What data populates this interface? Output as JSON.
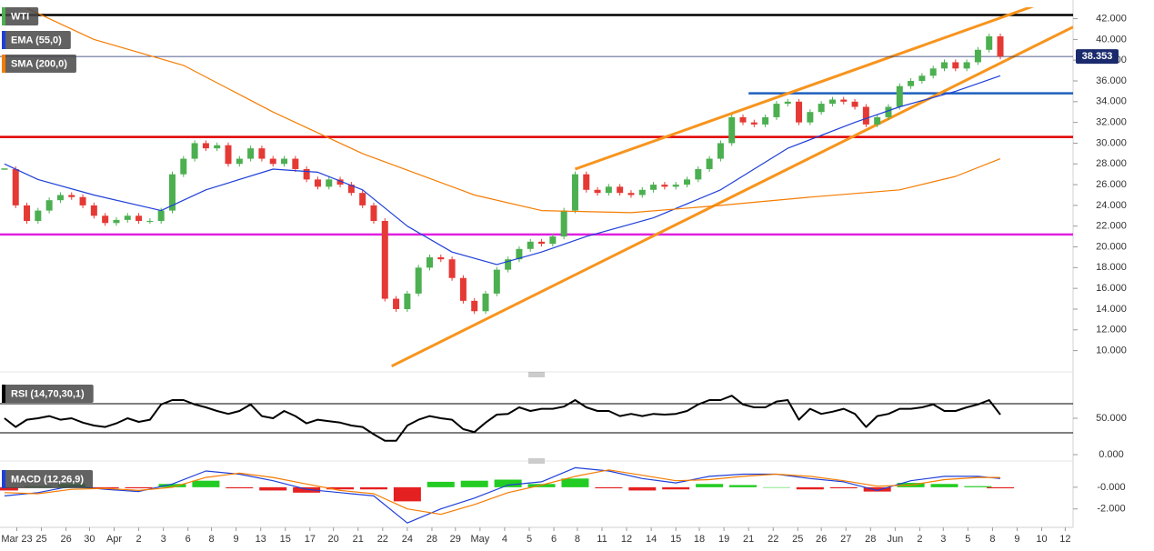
{
  "chart_data": [
    {
      "type": "candlestick",
      "xlim": [
        -0.4,
        95.5
      ],
      "ylim": [
        8.3,
        43.1
      ],
      "yticks": [
        {
          "value": 10,
          "label": "10.000"
        },
        {
          "value": 12,
          "label": "12.000"
        },
        {
          "value": 14,
          "label": "14.000"
        },
        {
          "value": 16,
          "label": "16.000"
        },
        {
          "value": 18,
          "label": "18.000"
        },
        {
          "value": 20,
          "label": "20.000"
        },
        {
          "value": 22,
          "label": "22.000"
        },
        {
          "value": 24,
          "label": "24.000"
        },
        {
          "value": 26,
          "label": "26.000"
        },
        {
          "value": 28,
          "label": "28.000"
        },
        {
          "value": 30,
          "label": "30.000"
        },
        {
          "value": 32,
          "label": "32.000"
        },
        {
          "value": 34,
          "label": "34.000"
        },
        {
          "value": 36,
          "label": "36.000"
        },
        {
          "value": 38,
          "label": "38.000"
        },
        {
          "value": 40,
          "label": "40.000"
        },
        {
          "value": 42,
          "label": "42.000"
        }
      ],
      "series": [
        {
          "name": "WTI",
          "color": "#4caf50",
          "down_color": "#e53935",
          "values": [
            27.5,
            24,
            22.5,
            23.5,
            24.5,
            25,
            24.8,
            24,
            23,
            22.3,
            22.6,
            23,
            22.5,
            22.5,
            23.5,
            27,
            28.5,
            30,
            29.5,
            29.8,
            28,
            28.5,
            29.5,
            28.5,
            28,
            28.5,
            27.5,
            26.5,
            25.8,
            26.5,
            26,
            25.2,
            24,
            22.5,
            15,
            14,
            15.5,
            18,
            19,
            18.8,
            17,
            14.8,
            13.8,
            15.5,
            17.8,
            18.8,
            19.8,
            20.5,
            20.3,
            21,
            23.5,
            27,
            25.5,
            25.2,
            25.8,
            25.2,
            25,
            25.5,
            26,
            25.8,
            26,
            26.5,
            27.5,
            28.5,
            30,
            32.5,
            32,
            31.8,
            32.5,
            33.8,
            34,
            32,
            33,
            33.8,
            34.2,
            34,
            33.5,
            31.8,
            32.5,
            33.5,
            35.5,
            36,
            36.5,
            37.2,
            37.8,
            37.2,
            37.8,
            39,
            40.3,
            38.353
          ]
        },
        {
          "name": "EMA (55,0)",
          "color": "#1f3fd8",
          "x": [
            0,
            3,
            8,
            14,
            18,
            24,
            28,
            32,
            36,
            40,
            44,
            48,
            52,
            58,
            64,
            70,
            76,
            80,
            85,
            89
          ],
          "values": [
            28,
            26.5,
            25,
            23.5,
            25.5,
            27.5,
            27.2,
            25.5,
            22,
            19.5,
            18.3,
            19.5,
            21,
            22.8,
            25.5,
            29.5,
            32,
            33.5,
            35,
            36.5
          ]
        },
        {
          "name": "SMA (200,0)",
          "color": "#f57c00",
          "x": [
            2,
            8,
            16,
            24,
            32,
            37,
            42,
            48,
            56,
            64,
            72,
            80,
            85,
            89
          ],
          "values": [
            43,
            40,
            37.5,
            33,
            29,
            27,
            25,
            23.5,
            23.3,
            24,
            24.8,
            25.5,
            26.8,
            28.5
          ]
        }
      ],
      "last_price": 38.353,
      "hlines": [
        {
          "value": 42.35,
          "color": "#000000"
        },
        {
          "value": 34.8,
          "color": "#1f5fbf",
          "from": 66.5
        },
        {
          "value": 30.6,
          "color": "#e00000"
        },
        {
          "value": 21.2,
          "color": "#e020e0"
        }
      ],
      "trendlines": [
        {
          "x": [
            51,
            93.5
          ],
          "values": [
            27.5,
            43.8
          ],
          "color": "#f7941d"
        },
        {
          "x": [
            34.6,
            95.5
          ],
          "values": [
            8.5,
            41.2
          ],
          "color": "#f7941d"
        }
      ]
    },
    {
      "type": "line",
      "title": "RSI (14,70,30,1)",
      "color": "#000000",
      "xlim": [
        -0.4,
        95.5
      ],
      "ylim": [
        -7.5,
        102.5
      ],
      "yticks": [
        {
          "value": 50,
          "label": "50.000"
        },
        {
          "value": 0,
          "label": "0.000"
        }
      ],
      "hlines": [
        {
          "value": 70,
          "color": "#000000"
        },
        {
          "value": 30,
          "color": "#000000"
        }
      ],
      "values": [
        50,
        38,
        48,
        50,
        53,
        48,
        50,
        44,
        40,
        38,
        43,
        50,
        45,
        48,
        69,
        75,
        75,
        69,
        65,
        60,
        56,
        60,
        69,
        53,
        50,
        60,
        53,
        43,
        48,
        46,
        44,
        40,
        38,
        28,
        19,
        19,
        40,
        48,
        53,
        50,
        48,
        35,
        31,
        44,
        55,
        56,
        65,
        60,
        63,
        63,
        66,
        75,
        65,
        60,
        60,
        53,
        56,
        53,
        56,
        55,
        56,
        60,
        69,
        75,
        75,
        81,
        69,
        65,
        65,
        73,
        75,
        48,
        63,
        56,
        59,
        63,
        56,
        38,
        53,
        56,
        63,
        63,
        65,
        69,
        60,
        60,
        65,
        69,
        75,
        55
      ]
    },
    {
      "type": "macd",
      "title": "MACD (12,26,9)",
      "xlim": [
        -0.4,
        95.5
      ],
      "ylim": [
        -3.7,
        2
      ],
      "yticks": [
        {
          "value": 0,
          "label": "-0.000"
        },
        {
          "value": -2,
          "label": "-2.000"
        }
      ],
      "xticks": [
        {
          "value": 1.1,
          "label": "Mar 23"
        },
        {
          "value": 3.3,
          "label": "25"
        },
        {
          "value": 5.5,
          "label": "26"
        },
        {
          "value": 7.6,
          "label": "30"
        },
        {
          "value": 9.8,
          "label": "Apr"
        },
        {
          "value": 12.0,
          "label": "2"
        },
        {
          "value": 14.2,
          "label": "3"
        },
        {
          "value": 16.4,
          "label": "6"
        },
        {
          "value": 18.5,
          "label": "8"
        },
        {
          "value": 20.7,
          "label": "9"
        },
        {
          "value": 22.9,
          "label": "13"
        },
        {
          "value": 25.1,
          "label": "15"
        },
        {
          "value": 27.3,
          "label": "17"
        },
        {
          "value": 29.4,
          "label": "20"
        },
        {
          "value": 31.6,
          "label": "21"
        },
        {
          "value": 33.8,
          "label": "22"
        },
        {
          "value": 36.0,
          "label": "24"
        },
        {
          "value": 38.2,
          "label": "28"
        },
        {
          "value": 40.3,
          "label": "29"
        },
        {
          "value": 42.5,
          "label": "May"
        },
        {
          "value": 44.7,
          "label": "4"
        },
        {
          "value": 46.9,
          "label": "5"
        },
        {
          "value": 49.1,
          "label": "6"
        },
        {
          "value": 51.2,
          "label": "8"
        },
        {
          "value": 53.4,
          "label": "11"
        },
        {
          "value": 55.6,
          "label": "12"
        },
        {
          "value": 57.8,
          "label": "14"
        },
        {
          "value": 60.0,
          "label": "15"
        },
        {
          "value": 62.1,
          "label": "18"
        },
        {
          "value": 64.3,
          "label": "19"
        },
        {
          "value": 66.5,
          "label": "21"
        },
        {
          "value": 68.7,
          "label": "22"
        },
        {
          "value": 70.9,
          "label": "25"
        },
        {
          "value": 73.0,
          "label": "26"
        },
        {
          "value": 75.2,
          "label": "27"
        },
        {
          "value": 77.4,
          "label": "28"
        },
        {
          "value": 79.6,
          "label": "Jun"
        },
        {
          "value": 81.8,
          "label": "2"
        },
        {
          "value": 83.9,
          "label": "3"
        },
        {
          "value": 86.1,
          "label": "5"
        },
        {
          "value": 88.3,
          "label": "8"
        },
        {
          "value": 90.5,
          "label": "9"
        },
        {
          "value": 92.7,
          "label": "10"
        },
        {
          "value": 94.8,
          "label": "12"
        }
      ],
      "x": [
        0,
        3,
        6,
        9,
        12,
        15,
        18,
        21,
        24,
        27,
        30,
        33,
        36,
        39,
        42,
        45,
        48,
        51,
        54,
        57,
        60,
        63,
        66,
        69,
        72,
        75,
        78,
        81,
        84,
        87,
        89
      ],
      "macd": {
        "color": "#1f3fd8",
        "values": [
          -0.8,
          -0.5,
          0.1,
          -0.2,
          -0.4,
          0.3,
          1.5,
          1.2,
          0.6,
          -0.2,
          -0.5,
          -0.8,
          -3.3,
          -2.0,
          -1.0,
          0.2,
          0.5,
          1.8,
          1.5,
          0.8,
          0.4,
          1.0,
          1.2,
          1.2,
          0.8,
          0.5,
          -0.3,
          0.6,
          1.0,
          1.0,
          0.8
        ]
      },
      "signal": {
        "color": "#f57c00",
        "values": [
          -0.5,
          -0.6,
          -0.2,
          -0.1,
          -0.3,
          0,
          0.9,
          1.3,
          0.9,
          0.3,
          -0.3,
          -0.6,
          -2.0,
          -2.5,
          -1.6,
          -0.5,
          0.2,
          1.0,
          1.6,
          1.1,
          0.6,
          0.7,
          1.0,
          1.2,
          1.0,
          0.6,
          0.1,
          0.2,
          0.7,
          0.9,
          0.9
        ]
      },
      "histogram": {
        "color": "#22cc22",
        "down_color": "#e52020",
        "values": [
          -0.3,
          0.1,
          0.3,
          -0.1,
          -0.1,
          0.3,
          0.6,
          -0.1,
          -0.3,
          -0.5,
          -0.2,
          -0.2,
          -1.3,
          0.5,
          0.6,
          0.7,
          0.3,
          0.8,
          -0.1,
          -0.3,
          -0.2,
          0.3,
          0.2,
          0,
          -0.2,
          -0.1,
          -0.4,
          0.4,
          0.3,
          0.1,
          -0.1
        ]
      }
    }
  ]
}
